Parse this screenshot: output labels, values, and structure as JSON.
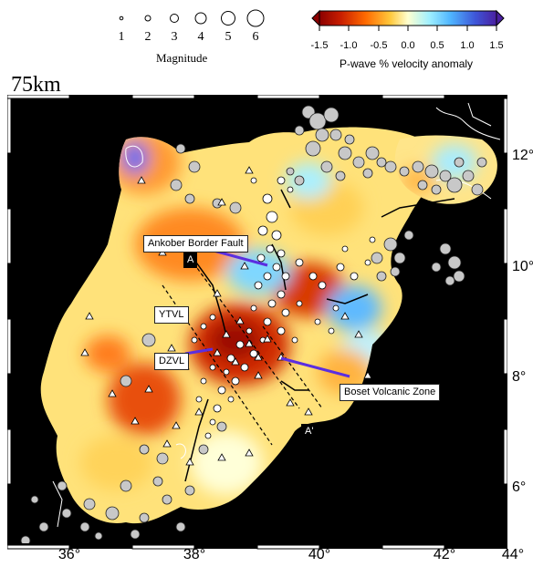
{
  "legend": {
    "magnitude_values": [
      "1",
      "2",
      "3",
      "4",
      "5",
      "6"
    ],
    "magnitude_title": "Magnitude",
    "colorbar_ticks": [
      "-1.5",
      "-1.0",
      "-0.5",
      "0.0",
      "0.5",
      "1.0",
      "1.5"
    ],
    "colorbar_title": "P-wave % velocity anomaly",
    "colorbar_colors": [
      "#8b0000",
      "#c81e00",
      "#ff6a00",
      "#ffc83c",
      "#ffffd0",
      "#a0f0ff",
      "#4fb5ff",
      "#3e56d8",
      "#4a1fa0"
    ]
  },
  "map": {
    "depth_label": "75km",
    "lat_labels": [
      "12°",
      "10°",
      "8°",
      "6°"
    ],
    "lon_labels": [
      "36°",
      "38°",
      "40°",
      "42°",
      "44°"
    ],
    "annotations": {
      "ankober": "Ankober Border Fault",
      "ytvl": "YTVL",
      "dzvl": "DZVL",
      "boset": "Boset Volcanic Zone",
      "a": "A",
      "a_prime": "A'"
    }
  }
}
